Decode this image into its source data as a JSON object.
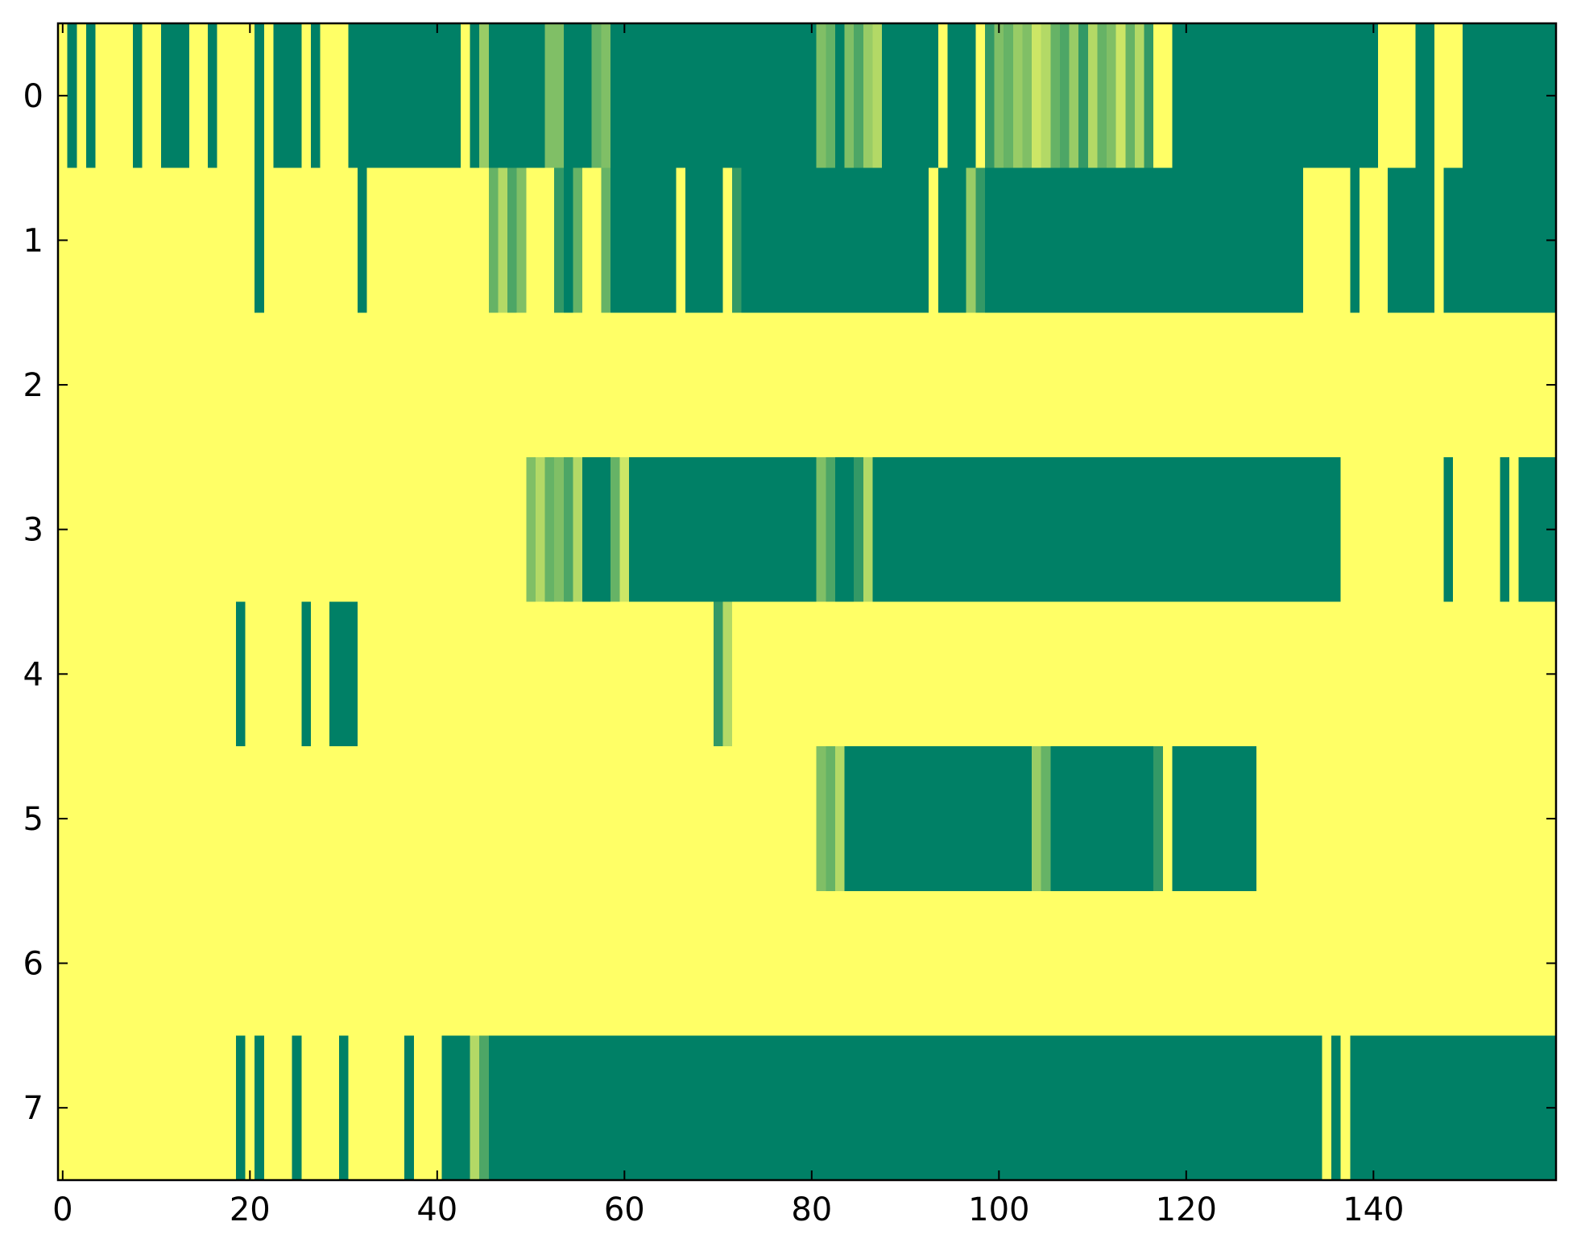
{
  "chart_data": {
    "type": "heatmap",
    "colormap": "summer_r",
    "xlim": [
      -0.5,
      159.5
    ],
    "ylim": [
      7.5,
      -0.5
    ],
    "xticks": [
      0,
      20,
      40,
      60,
      80,
      100,
      120,
      140
    ],
    "yticks": [
      0,
      1,
      2,
      3,
      4,
      5,
      6,
      7
    ],
    "values": [
      [
        0,
        1,
        0,
        1,
        0,
        0,
        0,
        0,
        1,
        0,
        0,
        1,
        1,
        1,
        0,
        0,
        1,
        0,
        0,
        0,
        0,
        1,
        0,
        1,
        1,
        1,
        0,
        1,
        0,
        0,
        0,
        1,
        1,
        1,
        1,
        1,
        1,
        1,
        1,
        1,
        1,
        1,
        1,
        0,
        1,
        0.4,
        1,
        1,
        1,
        1,
        1,
        1,
        0.5,
        0.5,
        1,
        1,
        1,
        0.6,
        0.5,
        1,
        1,
        1,
        1,
        1,
        1,
        1,
        1,
        1,
        1,
        1,
        1,
        1,
        1,
        1,
        1,
        1,
        1,
        1,
        1,
        1,
        1,
        0.5,
        0.6,
        1,
        0.5,
        0.7,
        0.4,
        0.3,
        1,
        1,
        1,
        1,
        1,
        1,
        0,
        1,
        1,
        1,
        0,
        0.8,
        0.5,
        0.6,
        0.4,
        0.5,
        0.2,
        0.3,
        0.6,
        0.7,
        0.4,
        0.8,
        0.3,
        0.6,
        0.5,
        0.2,
        0.6,
        0.3,
        0.8,
        0,
        0,
        1,
        1,
        1,
        1,
        1,
        1,
        1,
        1,
        1,
        1,
        1,
        1,
        1,
        1,
        1,
        1,
        1,
        1,
        1,
        1,
        1,
        1,
        0,
        0,
        0,
        0,
        1,
        1,
        0,
        0,
        0,
        1,
        1,
        1,
        1,
        1,
        1,
        1,
        1,
        1,
        1
      ],
      [
        0,
        0,
        0,
        0,
        0,
        0,
        0,
        0,
        0,
        0,
        0,
        0,
        0,
        0,
        0,
        0,
        0,
        0,
        0,
        0,
        0,
        1,
        0,
        0,
        0,
        0,
        0,
        0,
        0,
        0,
        0,
        0,
        1,
        0,
        0,
        0,
        0,
        0,
        0,
        0,
        0,
        0,
        0,
        0,
        0,
        0,
        0.6,
        0.3,
        0.7,
        0.5,
        0,
        0,
        0,
        0.8,
        1,
        0.6,
        0,
        0,
        0.6,
        1,
        1,
        1,
        1,
        1,
        1,
        1,
        0,
        1,
        1,
        1,
        1,
        0,
        0.8,
        1,
        1,
        1,
        1,
        1,
        1,
        1,
        1,
        1,
        1,
        1,
        1,
        1,
        1,
        1,
        1,
        1,
        1,
        1,
        1,
        0,
        1,
        1,
        1,
        0.4,
        0.8,
        1,
        1,
        1,
        1,
        1,
        1,
        1,
        1,
        1,
        1,
        1,
        1,
        1,
        1,
        1,
        1,
        1,
        1,
        1,
        1,
        1,
        1,
        1,
        1,
        1,
        1,
        1,
        1,
        1,
        1,
        1,
        1,
        1,
        1,
        0,
        0,
        0,
        0,
        0,
        1,
        0,
        0,
        0,
        1,
        1,
        1,
        1,
        1,
        0,
        1,
        1,
        1,
        1,
        1,
        1,
        1,
        1,
        1,
        1,
        1,
        1
      ],
      [
        0,
        0,
        0,
        0,
        0,
        0,
        0,
        0,
        0,
        0,
        0,
        0,
        0,
        0,
        0,
        0,
        0,
        0,
        0,
        0,
        0,
        0,
        0,
        0,
        0,
        0,
        0,
        0,
        0,
        0,
        0,
        0,
        0,
        0,
        0,
        0,
        0,
        0,
        0,
        0,
        0,
        0,
        0,
        0,
        0,
        0,
        0,
        0,
        0,
        0,
        0,
        0,
        0,
        0,
        0,
        0,
        0,
        0,
        0,
        0,
        0,
        0,
        0,
        0,
        0,
        0,
        0,
        0,
        0,
        0,
        0,
        0,
        0,
        0,
        0,
        0,
        0,
        0,
        0,
        0,
        0,
        0,
        0,
        0,
        0,
        0,
        0,
        0,
        0,
        0,
        0,
        0,
        0,
        0,
        0,
        0,
        0,
        0,
        0,
        0,
        0,
        0,
        0,
        0,
        0,
        0,
        0,
        0,
        0,
        0,
        0,
        0,
        0,
        0,
        0,
        0,
        0,
        0,
        0,
        0,
        0,
        0,
        0,
        0,
        0,
        0,
        0,
        0,
        0,
        0,
        0,
        0,
        0,
        0,
        0,
        0,
        0,
        0,
        0,
        0,
        0,
        0,
        0,
        0,
        0,
        0,
        0,
        0,
        0,
        0,
        0,
        0,
        0,
        0,
        0,
        0,
        0,
        0,
        0,
        0
      ],
      [
        0,
        0,
        0,
        0,
        0,
        0,
        0,
        0,
        0,
        0,
        0,
        0,
        0,
        0,
        0,
        0,
        0,
        0,
        0,
        0,
        0,
        0,
        0,
        0,
        0,
        0,
        0,
        0,
        0,
        0,
        0,
        0,
        0,
        0,
        0,
        0,
        0,
        0,
        0,
        0,
        0,
        0,
        0,
        0,
        0,
        0,
        0,
        0,
        0,
        0,
        0.5,
        0.3,
        0.6,
        0.5,
        0.7,
        0.3,
        1,
        1,
        1,
        0.6,
        0.2,
        1,
        1,
        1,
        1,
        1,
        1,
        1,
        1,
        1,
        1,
        1,
        1,
        1,
        1,
        1,
        1,
        1,
        1,
        1,
        1,
        0.5,
        0.7,
        1,
        1,
        0.8,
        0.3,
        1,
        1,
        1,
        1,
        1,
        1,
        1,
        1,
        1,
        1,
        1,
        1,
        1,
        1,
        1,
        1,
        1,
        1,
        1,
        1,
        1,
        1,
        1,
        1,
        1,
        1,
        1,
        1,
        1,
        1,
        1,
        1,
        1,
        1,
        1,
        1,
        1,
        1,
        1,
        1,
        1,
        1,
        1,
        1,
        1,
        1,
        1,
        1,
        1,
        1,
        0,
        0,
        0,
        0,
        0,
        0,
        0,
        0,
        0,
        0,
        0,
        1,
        0,
        0,
        0,
        0,
        0,
        1,
        0,
        1,
        1,
        1,
        1
      ],
      [
        0,
        0,
        0,
        0,
        0,
        0,
        0,
        0,
        0,
        0,
        0,
        0,
        0,
        0,
        0,
        0,
        0,
        0,
        0,
        1,
        0,
        0,
        0,
        0,
        0,
        0,
        1,
        0,
        0,
        1,
        1,
        1,
        0,
        0,
        0,
        0,
        0,
        0,
        0,
        0,
        0,
        0,
        0,
        0,
        0,
        0,
        0,
        0,
        0,
        0,
        0,
        0,
        0,
        0,
        0,
        0,
        0,
        0,
        0,
        0,
        0,
        0,
        0,
        0,
        0,
        0,
        0,
        0,
        0,
        0,
        0.8,
        0.3,
        0,
        0,
        0,
        0,
        0,
        0,
        0,
        0,
        0,
        0,
        0,
        0,
        0,
        0,
        0,
        0,
        0,
        0,
        0,
        0,
        0,
        0,
        0,
        0,
        0,
        0,
        0,
        0,
        0,
        0,
        0,
        0,
        0,
        0,
        0,
        0,
        0,
        0,
        0,
        0,
        0,
        0,
        0,
        0,
        0,
        0,
        0,
        0,
        0,
        0,
        0,
        0,
        0,
        0,
        0,
        0,
        0,
        0,
        0,
        0,
        0,
        0,
        0,
        0,
        0,
        0,
        0,
        0,
        0,
        0,
        0,
        0,
        0,
        0,
        0,
        0,
        0,
        0,
        0,
        0,
        0,
        0,
        0,
        0,
        0,
        0,
        0,
        0
      ],
      [
        0,
        0,
        0,
        0,
        0,
        0,
        0,
        0,
        0,
        0,
        0,
        0,
        0,
        0,
        0,
        0,
        0,
        0,
        0,
        0,
        0,
        0,
        0,
        0,
        0,
        0,
        0,
        0,
        0,
        0,
        0,
        0,
        0,
        0,
        0,
        0,
        0,
        0,
        0,
        0,
        0,
        0,
        0,
        0,
        0,
        0,
        0,
        0,
        0,
        0,
        0,
        0,
        0,
        0,
        0,
        0,
        0,
        0,
        0,
        0,
        0,
        0,
        0,
        0,
        0,
        0,
        0,
        0,
        0,
        0,
        0,
        0,
        0,
        0,
        0,
        0,
        0,
        0,
        0,
        0,
        0,
        0.5,
        0.6,
        0.3,
        1,
        1,
        1,
        1,
        1,
        1,
        1,
        1,
        1,
        1,
        1,
        1,
        1,
        1,
        1,
        1,
        1,
        1,
        1,
        1,
        0.4,
        0.6,
        1,
        1,
        1,
        1,
        1,
        1,
        1,
        1,
        1,
        1,
        1,
        0.8,
        0,
        1,
        1,
        1,
        1,
        1,
        1,
        1,
        1,
        1,
        0,
        0,
        0,
        0,
        0,
        0,
        0,
        0,
        0,
        0,
        0,
        0,
        0,
        0,
        0,
        0,
        0,
        0,
        0,
        0,
        0,
        0,
        0,
        0,
        0,
        0,
        0,
        0,
        0,
        0,
        0,
        0
      ],
      [
        0,
        0,
        0,
        0,
        0,
        0,
        0,
        0,
        0,
        0,
        0,
        0,
        0,
        0,
        0,
        0,
        0,
        0,
        0,
        0,
        0,
        0,
        0,
        0,
        0,
        0,
        0,
        0,
        0,
        0,
        0,
        0,
        0,
        0,
        0,
        0,
        0,
        0,
        0,
        0,
        0,
        0,
        0,
        0,
        0,
        0,
        0,
        0,
        0,
        0,
        0,
        0,
        0,
        0,
        0,
        0,
        0,
        0,
        0,
        0,
        0,
        0,
        0,
        0,
        0,
        0,
        0,
        0,
        0,
        0,
        0,
        0,
        0,
        0,
        0,
        0,
        0,
        0,
        0,
        0,
        0,
        0,
        0,
        0,
        0,
        0,
        0,
        0,
        0,
        0,
        0,
        0,
        0,
        0,
        0,
        0,
        0,
        0,
        0,
        0,
        0,
        0,
        0,
        0,
        0,
        0,
        0,
        0,
        0,
        0,
        0,
        0,
        0,
        0,
        0,
        0,
        0,
        0,
        0,
        0,
        0,
        0,
        0,
        0,
        0,
        0,
        0,
        0,
        0,
        0,
        0,
        0,
        0,
        0,
        0,
        0,
        0,
        0,
        0,
        0,
        0,
        0,
        0,
        0,
        0,
        0,
        0,
        0,
        0,
        0,
        0,
        0,
        0,
        0,
        0,
        0,
        0,
        0,
        0,
        0
      ],
      [
        0,
        0,
        0,
        0,
        0,
        0,
        0,
        0,
        0,
        0,
        0,
        0,
        0,
        0,
        0,
        0,
        0,
        0,
        0,
        1,
        0,
        1,
        0,
        0,
        0,
        1,
        0,
        0,
        0,
        0,
        1,
        0,
        0,
        0,
        0,
        0,
        0,
        1,
        0,
        0,
        0,
        1,
        1,
        1,
        0.3,
        0.7,
        1,
        1,
        1,
        1,
        1,
        1,
        1,
        1,
        1,
        1,
        1,
        1,
        1,
        1,
        1,
        1,
        1,
        1,
        1,
        1,
        1,
        1,
        1,
        1,
        1,
        1,
        1,
        1,
        1,
        1,
        1,
        1,
        1,
        1,
        1,
        1,
        1,
        1,
        1,
        1,
        1,
        1,
        1,
        1,
        1,
        1,
        1,
        1,
        1,
        1,
        1,
        1,
        1,
        1,
        1,
        1,
        1,
        1,
        1,
        1,
        1,
        1,
        1,
        1,
        1,
        1,
        1,
        1,
        1,
        1,
        1,
        1,
        1,
        1,
        1,
        1,
        1,
        1,
        1,
        1,
        1,
        1,
        1,
        1,
        1,
        1,
        1,
        1,
        1,
        0,
        1,
        0,
        1,
        1,
        1,
        1,
        1,
        1,
        1,
        1,
        1,
        1,
        1,
        1,
        1,
        1,
        1,
        1,
        1,
        1,
        1,
        1,
        1,
        1
      ]
    ]
  }
}
